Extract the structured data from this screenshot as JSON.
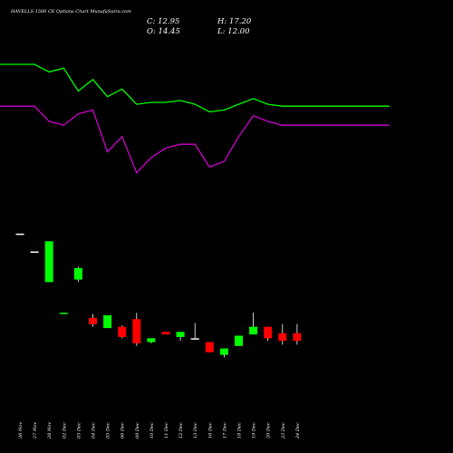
{
  "title": "HAVELLS 1500 CE Options Chart MunafaSutra.com",
  "ohlc": {
    "close": "C: 12.95",
    "high": "H: 17.20",
    "open": "O: 14.45",
    "low": "L: 12.00"
  },
  "colors": {
    "background": "#000000",
    "up": "#00ff00",
    "down": "#ff0000",
    "neutral": "#ffffff",
    "line_upper": "#00ff00",
    "line_lower": "#cc00cc",
    "text": "#ffffff"
  },
  "chart_data": {
    "type": "candlestick",
    "categories": [
      "26 Nov",
      "27 Nov",
      "28 Nov",
      "02 Dec",
      "03 Dec",
      "04 Dec",
      "05 Dec",
      "06 Dec",
      "09 Dec",
      "10 Dec",
      "11 Dec",
      "12 Dec",
      "13 Dec",
      "16 Dec",
      "17 Dec",
      "18 Dec",
      "19 Dec",
      "20 Dec",
      "23 Dec",
      "24 Dec"
    ],
    "candles": [
      {
        "open": 108,
        "high": 108,
        "low": 108,
        "close": 108,
        "dir": "neutral"
      },
      {
        "open": 94,
        "high": 94,
        "low": 94,
        "close": 94,
        "dir": "neutral"
      },
      {
        "open": 70,
        "high": 102,
        "low": 70,
        "close": 102,
        "dir": "up"
      },
      {
        "open": 46,
        "high": 46,
        "low": 46,
        "close": 46,
        "dir": "up"
      },
      {
        "open": 72,
        "high": 82,
        "low": 70,
        "close": 81,
        "dir": "up"
      },
      {
        "open": 42,
        "high": 45,
        "low": 35,
        "close": 37,
        "dir": "down"
      },
      {
        "open": 34,
        "high": 44,
        "low": 34,
        "close": 44,
        "dir": "up"
      },
      {
        "open": 35,
        "high": 36,
        "low": 26,
        "close": 27,
        "dir": "down"
      },
      {
        "open": 41,
        "high": 46,
        "low": 20,
        "close": 22,
        "dir": "down"
      },
      {
        "open": 23,
        "high": 26,
        "low": 22,
        "close": 26,
        "dir": "up"
      },
      {
        "open": 31,
        "high": 31,
        "low": 29,
        "close": 29,
        "dir": "down"
      },
      {
        "open": 27,
        "high": 31,
        "low": 24,
        "close": 31,
        "dir": "up"
      },
      {
        "open": 26,
        "high": 38,
        "low": 26,
        "close": 26,
        "dir": "neutral"
      },
      {
        "open": 23,
        "high": 23,
        "low": 15,
        "close": 15,
        "dir": "down"
      },
      {
        "open": 13,
        "high": 18,
        "low": 11,
        "close": 18,
        "dir": "up"
      },
      {
        "open": 20,
        "high": 28,
        "low": 20,
        "close": 28,
        "dir": "up"
      },
      {
        "open": 29,
        "high": 46,
        "low": 29,
        "close": 35,
        "dir": "up"
      },
      {
        "open": 35,
        "high": 35,
        "low": 24,
        "close": 26,
        "dir": "down"
      },
      {
        "open": 30,
        "high": 37,
        "low": 21,
        "close": 24,
        "dir": "down"
      },
      {
        "open": 30,
        "high": 37,
        "low": 21,
        "close": 24,
        "dir": "down"
      }
    ],
    "lines": [
      {
        "color": "#00ff00",
        "values": [
          90,
          90,
          86,
          88,
          76,
          82,
          73,
          77,
          69,
          70,
          70,
          71,
          69,
          65,
          66,
          69,
          72,
          69,
          68,
          68
        ]
      },
      {
        "color": "#cc00cc",
        "values": [
          68,
          68,
          60,
          58,
          64,
          66,
          44,
          52,
          33,
          41,
          46,
          48,
          48,
          36,
          39,
          52,
          63,
          60,
          58,
          58
        ]
      }
    ]
  }
}
